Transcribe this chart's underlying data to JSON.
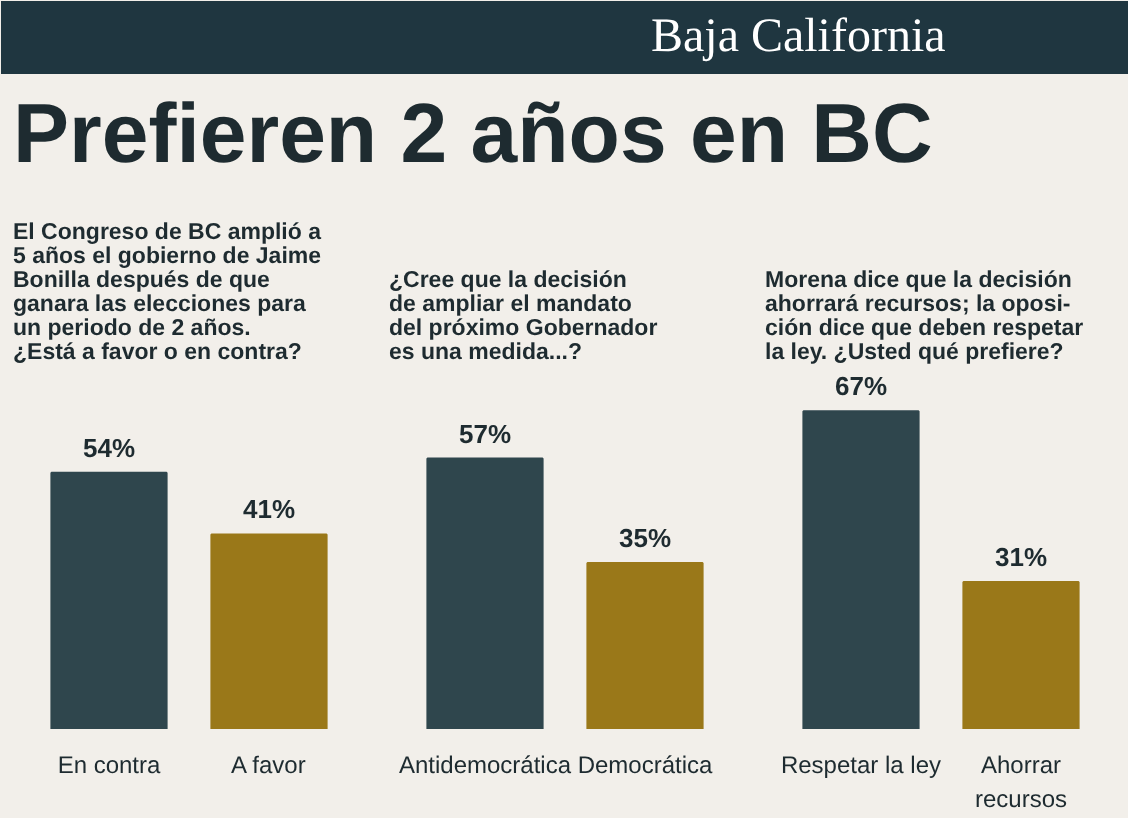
{
  "chart_data": [
    {
      "type": "bar",
      "title": "Prefieren 2 años en BC",
      "annotations": [
        "Baja California"
      ],
      "subtitle": "El Congreso de BC amplió a\n5 años el gobierno de Jaime\nBonilla después de que\nganara las elecciones para\nun periodo de 2 años.\n¿Está a favor o en contra?",
      "categories": [
        "En contra",
        "A favor"
      ],
      "values": [
        54,
        41
      ],
      "value_labels": [
        "54%",
        "41%"
      ],
      "colors": [
        "#2f464d",
        "#9a7819"
      ]
    },
    {
      "type": "bar",
      "subtitle": "¿Cree que la decisión\nde ampliar el mandato\ndel próximo Gobernador\nes una medida...?",
      "categories": [
        "Antidemocrática",
        "Democrática"
      ],
      "values": [
        57,
        35
      ],
      "value_labels": [
        "57%",
        "35%"
      ],
      "colors": [
        "#2f464d",
        "#9a7819"
      ]
    },
    {
      "type": "bar",
      "subtitle": "Morena dice que la decisión\nahorrará recursos; la oposi-\nción dice que deben respetar\nla ley. ¿Usted qué prefiere?",
      "categories": [
        "Respetar la ley",
        "Ahorrar recursos"
      ],
      "values": [
        67,
        31
      ],
      "value_labels": [
        "67%",
        "31%"
      ],
      "colors": [
        "#2f464d",
        "#9a7819"
      ]
    }
  ]
}
